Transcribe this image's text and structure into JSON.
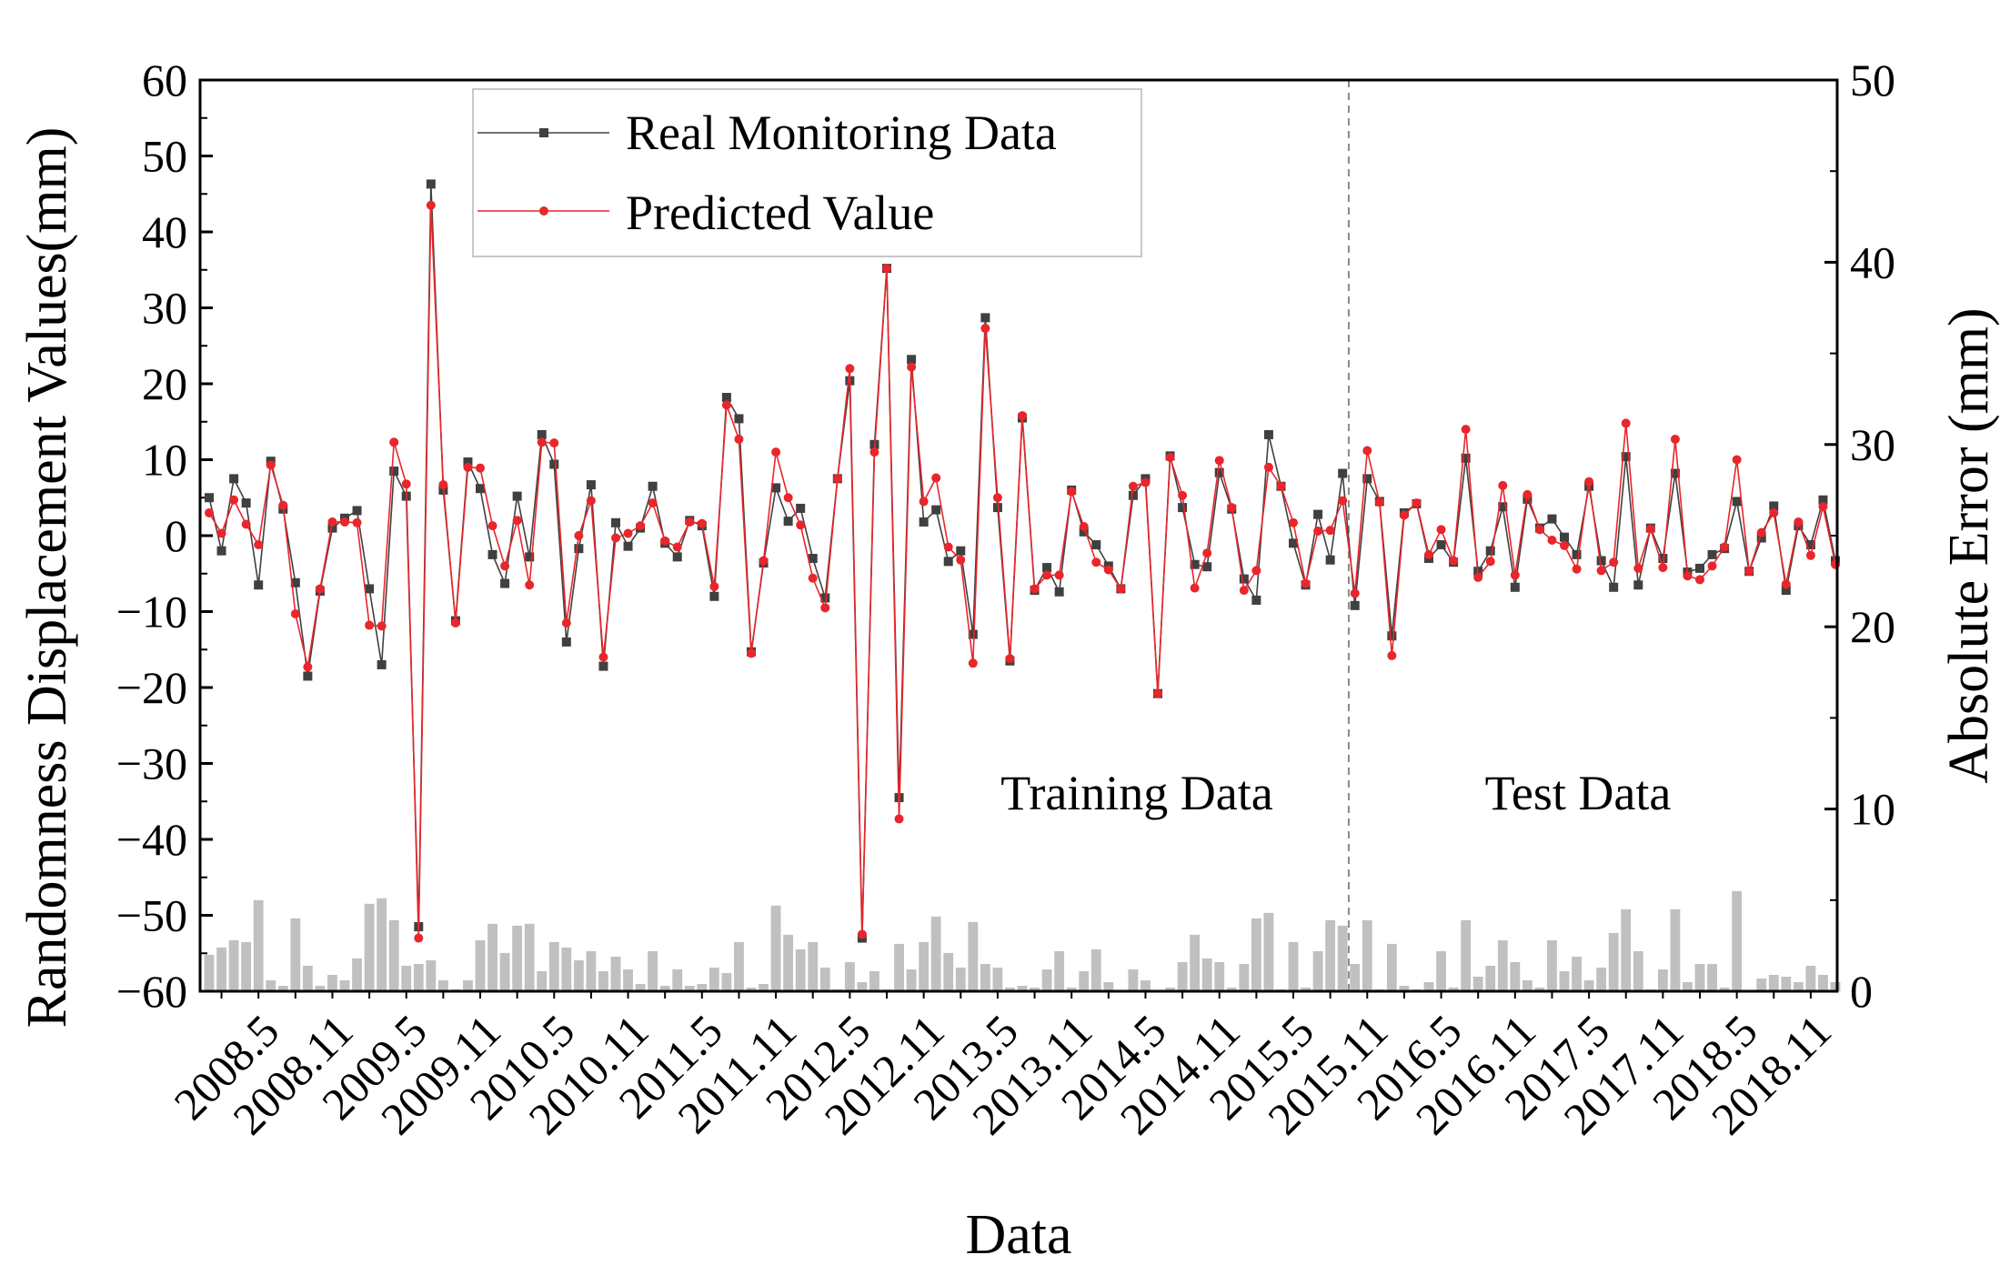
{
  "chart_data": {
    "type": "line+bar",
    "xlabel": "Data",
    "ylabel_left": "Randomness Displacement Values(mm)",
    "ylabel_right": "Absolute Error (mm)",
    "ylim_left": [
      -60,
      60
    ],
    "yticks_left": [
      60,
      50,
      40,
      30,
      20,
      10,
      0,
      -10,
      -20,
      -30,
      -40,
      -50,
      -60
    ],
    "ylim_right": [
      0,
      50
    ],
    "yticks_right": [
      50,
      40,
      30,
      20,
      10,
      0
    ],
    "x_tick_labels": [
      "2008.5",
      "2008.11",
      "2009.5",
      "2009.11",
      "2010.5",
      "2010.11",
      "2011.5",
      "2011.11",
      "2012.5",
      "2012.11",
      "2013.5",
      "2013.11",
      "2014.5",
      "2014.11",
      "2015.5",
      "2015.11",
      "2016.5",
      "2016.11",
      "2017.5",
      "2017.11",
      "2018.5",
      "2018.11"
    ],
    "split_index": 93,
    "region_labels": {
      "training": "Training Data",
      "test": "Test Data"
    },
    "legend": {
      "real": "Real Monitoring Data",
      "predicted": "Predicted Value"
    },
    "colors": {
      "real": "#404040",
      "predicted": "#e8262b",
      "error_bar": "#c0c0c0",
      "divider": "#8a8a8a"
    },
    "series": [
      {
        "name": "Real Monitoring Data",
        "values": [
          5,
          -2,
          7.5,
          4.3,
          -6.5,
          9.8,
          3.5,
          -6.2,
          -18.5,
          -7.3,
          1,
          2.3,
          3.3,
          -7,
          -17,
          8.5,
          5.2,
          -51.5,
          46.3,
          6,
          -11.2,
          9.7,
          6.2,
          -2.5,
          -6.3,
          5.2,
          -2.8,
          13.3,
          9.4,
          -14,
          -1.7,
          6.7,
          -17.2,
          1.7,
          -1.4,
          1,
          6.5,
          -1,
          -2.8,
          2,
          1.3,
          -8,
          18.2,
          15.4,
          -15.3,
          -3.6,
          6.3,
          1.9,
          3.6,
          -3,
          -8.2,
          7.5,
          20.4,
          -53,
          12,
          35.2,
          -34.5,
          23.2,
          1.8,
          3.4,
          -3.4,
          -2,
          -13,
          28.7,
          3.7,
          -16.5,
          15.5,
          -7.2,
          -4.2,
          -7.4,
          6,
          0.5,
          -1.2,
          -4,
          -7,
          5.3,
          7.5,
          -20.8,
          10.5,
          3.7,
          -3.8,
          -4.1,
          8.3,
          3.5,
          -5.7,
          -8.5,
          13.3,
          6.5,
          -1,
          -6.5,
          2.8,
          -3.2,
          8.2,
          -9.2,
          7.5,
          4.5,
          -13.2,
          3,
          4.2,
          -3,
          -1.2,
          -3.5,
          10.2,
          -4.7,
          -2,
          3.8,
          -6.8,
          4.8,
          1,
          2.2,
          -0.2,
          -2.5,
          6.5,
          -3.3,
          -6.8,
          10.4,
          -6.5,
          1,
          -3,
          8.2,
          -4.8,
          -4.3,
          -2.5,
          -1.7,
          4.5,
          -4.7,
          -0.3,
          3.9,
          -7.2,
          1.3,
          -1.2,
          4.7,
          -3.3
        ]
      },
      {
        "name": "Predicted Value",
        "values": [
          3,
          0.3,
          4.7,
          1.5,
          -1.2,
          9.3,
          4,
          -10.3,
          -17.3,
          -7,
          1.8,
          1.8,
          1.7,
          -11.8,
          -11.9,
          12.3,
          6.8,
          -53,
          43.5,
          6.7,
          -11.5,
          9,
          8.9,
          1.3,
          -4,
          2,
          -6.5,
          12.3,
          12.2,
          -11.5,
          0,
          4.6,
          -16,
          -0.3,
          0.3,
          1.3,
          4.3,
          -0.7,
          -1.5,
          1.8,
          1.6,
          -6.7,
          17.2,
          12.7,
          -15.5,
          -3.3,
          11,
          5,
          1.4,
          -5.6,
          -9.5,
          7.5,
          22,
          -52.5,
          11,
          35.2,
          -37.3,
          22.2,
          4.5,
          7.6,
          -1.5,
          -3.2,
          -16.8,
          27.3,
          5,
          -16.2,
          15.8,
          -7,
          -5.2,
          -5.2,
          5.8,
          1.2,
          -3.5,
          -4.5,
          -7,
          6.5,
          7,
          -20.8,
          10.3,
          5.3,
          -6.9,
          -2.3,
          9.9,
          3.7,
          -7.2,
          -4.6,
          9,
          6.5,
          1.7,
          -6.3,
          0.6,
          0.7,
          4.6,
          -7.6,
          11.2,
          4.4,
          -15.8,
          2.7,
          4.3,
          -2.5,
          0.8,
          -3.3,
          14,
          -5.5,
          -3.4,
          6.6,
          -5.2,
          5.4,
          0.8,
          -0.6,
          -1.3,
          -4.4,
          7.1,
          -4.6,
          -3.5,
          14.8,
          -4.3,
          0.9,
          -4.2,
          12.7,
          -5.3,
          -5.8,
          -4,
          -1.5,
          10,
          -4.7,
          0.4,
          3,
          -6.4,
          1.8,
          -2.6,
          3.8,
          -3.8
        ]
      }
    ],
    "absolute_error": {
      "name": "Absolute Error",
      "values": [
        2,
        2.4,
        2.8,
        2.7,
        5,
        0.6,
        0.3,
        4,
        1.4,
        0.3,
        0.9,
        0.6,
        1.8,
        4.8,
        5.1,
        3.9,
        1.4,
        1.5,
        1.7,
        0.6,
        0.1,
        0.6,
        2.8,
        3.7,
        2.1,
        3.6,
        3.7,
        1.1,
        2.7,
        2.4,
        1.7,
        2.2,
        1.1,
        1.9,
        1.2,
        0.4,
        2.2,
        0.3,
        1.2,
        0.3,
        0.4,
        1.3,
        1,
        2.7,
        0.2,
        0.4,
        4.7,
        3.1,
        2.3,
        2.7,
        1.3,
        0.1,
        1.6,
        0.5,
        1.1,
        0.1,
        2.6,
        1.2,
        2.7,
        4.1,
        2.1,
        1.3,
        3.8,
        1.5,
        1.3,
        0.2,
        0.3,
        0.2,
        1.2,
        2.2,
        0.2,
        1.1,
        2.3,
        0.5,
        0,
        1.2,
        0.6,
        0,
        0.2,
        1.6,
        3.1,
        1.8,
        1.6,
        0.2,
        1.5,
        4,
        4.3,
        0.1,
        2.7,
        0.2,
        2.2,
        3.9,
        3.6,
        1.5,
        3.9,
        0.1,
        2.6,
        0.3,
        0.1,
        0.5,
        2.2,
        0.2,
        3.9,
        0.8,
        1.4,
        2.8,
        1.6,
        0.6,
        0.2,
        2.8,
        1.1,
        1.9,
        0.6,
        1.3,
        3.2,
        4.5,
        2.2,
        0.1,
        1.2,
        4.5,
        0.5,
        1.5,
        1.5,
        0.2,
        5.5,
        0,
        0.7,
        0.9,
        0.8,
        0.5,
        1.4,
        0.9,
        0.5
      ]
    }
  }
}
